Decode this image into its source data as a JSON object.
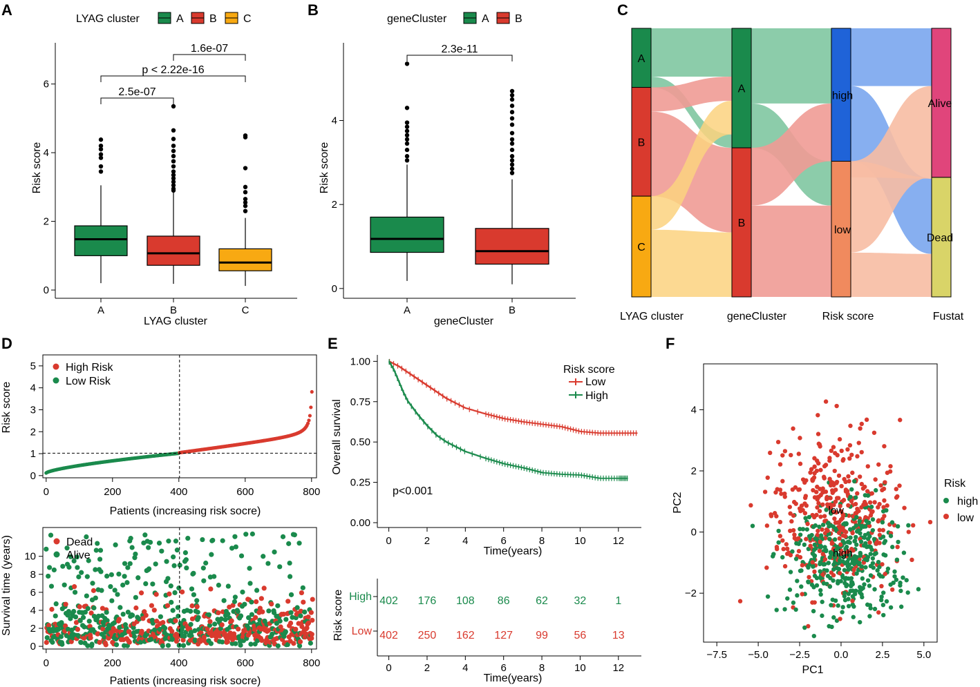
{
  "colors": {
    "green": "#1a8a4c",
    "red": "#d93a2e",
    "orange": "#f8a912",
    "blue": "#1f63d8",
    "salmon": "#f08a5e",
    "pink": "#e0457b",
    "khaki": "#d9d468",
    "lightgreen": "#7fc6a1",
    "lightred": "#ef9b95",
    "lightorange": "#fcd27f",
    "lightblue": "#7aa6ee",
    "lightsalmon": "#f7bca3",
    "scatter_red": "#d93a2e",
    "scatter_green": "#1a8a4c"
  },
  "chart_data": [
    {
      "panel": "A",
      "type": "box",
      "legend_title": "LYAG cluster",
      "legend": [
        "A",
        "B",
        "C"
      ],
      "xlabel": "LYAG cluster",
      "ylabel": "Risk score",
      "categories": [
        "A",
        "B",
        "C"
      ],
      "ylim": [
        -0.2,
        7.2
      ],
      "yticks": [
        0,
        2,
        4,
        6
      ],
      "boxes": [
        {
          "name": "A",
          "min": 0.2,
          "q1": 1.0,
          "median": 1.48,
          "q3": 1.87,
          "max": 3.05,
          "outliers": [
            3.45,
            3.6,
            3.85,
            3.95,
            4.1,
            4.2,
            4.38
          ]
        },
        {
          "name": "B",
          "min": 0.18,
          "q1": 0.72,
          "median": 1.07,
          "q3": 1.57,
          "max": 2.85,
          "outliers": [
            2.9,
            2.95,
            3.05,
            3.15,
            3.25,
            3.35,
            3.45,
            3.6,
            3.75,
            3.9,
            4.05,
            4.2,
            4.4,
            4.65,
            5.35
          ]
        },
        {
          "name": "C",
          "min": 0.12,
          "q1": 0.56,
          "median": 0.8,
          "q3": 1.2,
          "max": 2.1,
          "outliers": [
            2.3,
            2.45,
            2.55,
            2.65,
            2.85,
            3.0,
            3.55,
            4.45,
            4.5
          ]
        }
      ],
      "comparisons": [
        {
          "label": "2.5e-07",
          "from": "A",
          "to": "B"
        },
        {
          "label": "p < 2.22e-16",
          "from": "A",
          "to": "C"
        },
        {
          "label": "1.6e-07",
          "from": "B",
          "to": "C"
        }
      ]
    },
    {
      "panel": "B",
      "type": "box",
      "legend_title": "geneCluster",
      "legend": [
        "A",
        "B"
      ],
      "xlabel": "geneCluster",
      "ylabel": "Risk score",
      "categories": [
        "A",
        "B"
      ],
      "ylim": [
        -0.2,
        5.85
      ],
      "yticks": [
        0,
        2,
        4
      ],
      "boxes": [
        {
          "name": "A",
          "min": 0.18,
          "q1": 0.86,
          "median": 1.18,
          "q3": 1.7,
          "max": 2.95,
          "outliers": [
            3.05,
            3.15,
            3.3,
            3.45,
            3.55,
            3.65,
            3.75,
            3.85,
            3.95,
            4.3,
            5.35
          ]
        },
        {
          "name": "B",
          "min": 0.1,
          "q1": 0.58,
          "median": 0.89,
          "q3": 1.43,
          "max": 2.6,
          "outliers": [
            2.75,
            2.85,
            2.95,
            3.05,
            3.15,
            3.3,
            3.45,
            3.55,
            3.7,
            3.9,
            4.05,
            4.2,
            4.35,
            4.5,
            4.6,
            4.7
          ]
        }
      ],
      "comparisons": [
        {
          "label": "2.3e-11",
          "from": "A",
          "to": "B"
        }
      ]
    },
    {
      "panel": "C",
      "type": "sankey",
      "axes": [
        "LYAG cluster",
        "geneCluster",
        "Risk score",
        "Fustat"
      ],
      "nodes": [
        {
          "axis": 0,
          "label": "A",
          "share": 0.22
        },
        {
          "axis": 0,
          "label": "B",
          "share": 0.405
        },
        {
          "axis": 0,
          "label": "C",
          "share": 0.375
        },
        {
          "axis": 1,
          "label": "A",
          "share": 0.445
        },
        {
          "axis": 1,
          "label": "B",
          "share": 0.555
        },
        {
          "axis": 2,
          "label": "high",
          "share": 0.495
        },
        {
          "axis": 2,
          "label": "low",
          "share": 0.505
        },
        {
          "axis": 3,
          "label": "Alive",
          "share": 0.555
        },
        {
          "axis": 3,
          "label": "Dead",
          "share": 0.445
        }
      ]
    },
    {
      "panel": "D-top",
      "type": "scatter",
      "xlabel": "Patients (increasing risk socre)",
      "ylabel": "Risk score",
      "legend": [
        "High Risk",
        "Low Risk"
      ],
      "xlim": [
        -10,
        815
      ],
      "ylim": [
        -0.1,
        5.5
      ],
      "xticks": [
        0,
        200,
        400,
        600,
        800
      ],
      "yticks": [
        0,
        1,
        2,
        3,
        4,
        5
      ],
      "cutoff_x": 402,
      "cutoff_y": 1.02,
      "n": 804
    },
    {
      "panel": "D-bottom",
      "type": "scatter",
      "xlabel": "Patients (increasing risk socre)",
      "ylabel": "Survival time (years)",
      "legend": [
        "Dead",
        "Alive"
      ],
      "xlim": [
        -10,
        815
      ],
      "ylim": [
        -0.3,
        13.2
      ],
      "xticks": [
        0,
        200,
        400,
        600,
        800
      ],
      "yticks": [
        0,
        2,
        4,
        6,
        8,
        10
      ],
      "cutoff_x": 402
    },
    {
      "panel": "E",
      "type": "line",
      "title": "",
      "xlabel": "Time(years)",
      "ylabel": "Overall survival",
      "legend_title": "Risk score",
      "pvalue": "p<0.001",
      "xlim": [
        -0.6,
        13.2
      ],
      "ylim": [
        -0.03,
        1.04
      ],
      "xticks": [
        0,
        2,
        4,
        6,
        8,
        10,
        12
      ],
      "yticks": [
        "0.00",
        "0.25",
        "0.50",
        "0.75",
        "1.00"
      ],
      "series": [
        {
          "name": "Low",
          "x": [
            0,
            0.5,
            1,
            1.5,
            2,
            2.5,
            3,
            3.5,
            4,
            5,
            6,
            7,
            8,
            9,
            10,
            11,
            12,
            13
          ],
          "values": [
            1.0,
            0.97,
            0.93,
            0.89,
            0.85,
            0.81,
            0.77,
            0.74,
            0.71,
            0.675,
            0.645,
            0.625,
            0.61,
            0.595,
            0.565,
            0.555,
            0.555,
            0.555
          ]
        },
        {
          "name": "High",
          "x": [
            0,
            0.25,
            0.5,
            0.75,
            1,
            1.5,
            2,
            2.5,
            3,
            3.5,
            4,
            5,
            6,
            7,
            8,
            9,
            10,
            11,
            12,
            12.5
          ],
          "values": [
            1.0,
            0.95,
            0.88,
            0.81,
            0.75,
            0.67,
            0.6,
            0.54,
            0.5,
            0.47,
            0.44,
            0.4,
            0.365,
            0.34,
            0.31,
            0.3,
            0.295,
            0.275,
            0.275,
            0.275
          ]
        }
      ]
    },
    {
      "panel": "E-table",
      "type": "table",
      "ylabel": "Risk score",
      "xlabel": "Time(years)",
      "times": [
        0,
        2,
        4,
        6,
        8,
        10,
        12
      ],
      "rows": [
        {
          "name": "High",
          "values": [
            402,
            176,
            108,
            86,
            62,
            32,
            1
          ]
        },
        {
          "name": "Low",
          "values": [
            402,
            250,
            162,
            127,
            99,
            56,
            13
          ]
        }
      ]
    },
    {
      "panel": "F",
      "type": "scatter",
      "xlabel": "PC1",
      "ylabel": "PC2",
      "legend_title": "Risk",
      "legend": [
        "high",
        "low"
      ],
      "xlim": [
        -8.3,
        5.8
      ],
      "ylim": [
        -3.6,
        5.5
      ],
      "xticks": [
        -7.5,
        -5.0,
        -2.5,
        0.0,
        2.5,
        5.0
      ],
      "xtick_labels": [
        "−7.5",
        "−5.0",
        "−2.5",
        "0.0",
        "2.5",
        "5.0"
      ],
      "yticks": [
        -2,
        0,
        2,
        4
      ],
      "ytick_labels": [
        "−2",
        "0",
        "2",
        "4"
      ],
      "annotations": [
        {
          "label": "low",
          "x": -0.3,
          "y": 0.6
        },
        {
          "label": "high",
          "x": 0.1,
          "y": -0.8
        }
      ]
    }
  ],
  "panel_labels": [
    "A",
    "B",
    "C",
    "D",
    "E",
    "F"
  ]
}
